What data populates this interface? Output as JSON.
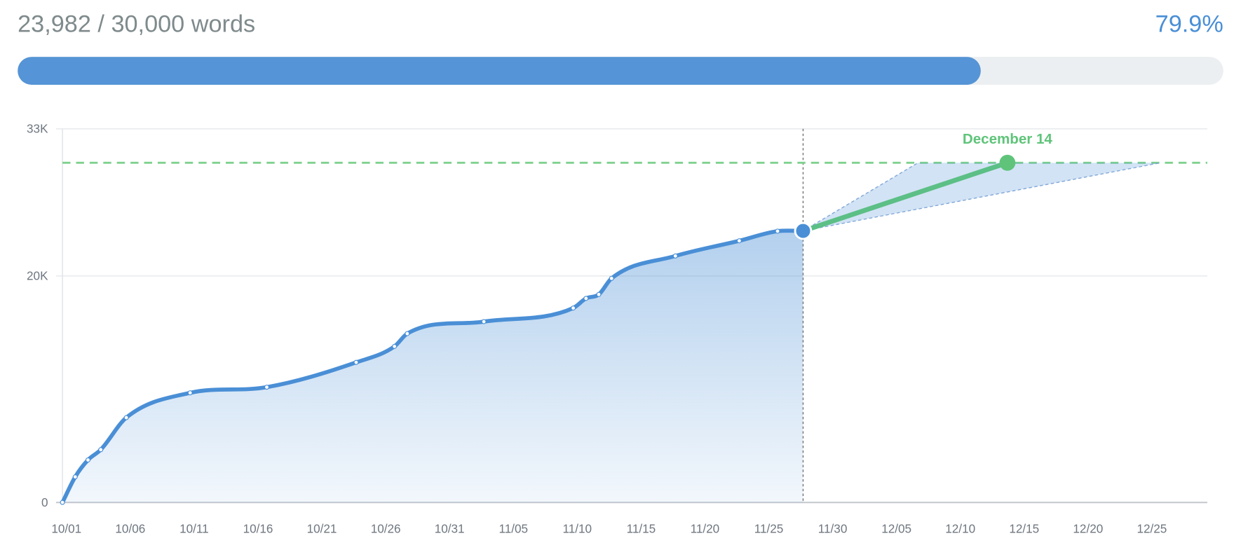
{
  "header": {
    "words_label": "23,982 / 30,000 words",
    "percent_label": "79.9%"
  },
  "progress": {
    "percent": 79.9,
    "fill_color": "#5594d6",
    "track_color": "#eceff1"
  },
  "chart_data": {
    "type": "area",
    "x_start": "10/01",
    "xlim_days": [
      "10/01",
      "12/31"
    ],
    "x_tick_labels": [
      "10/01",
      "10/06",
      "10/11",
      "10/16",
      "10/21",
      "10/26",
      "10/31",
      "11/05",
      "11/10",
      "11/15",
      "11/20",
      "11/25",
      "11/30",
      "12/05",
      "12/10",
      "12/15",
      "12/20",
      "12/25"
    ],
    "y_tick_labels": [
      "0",
      "20K",
      "33K"
    ],
    "y_ticks": [
      0,
      20000,
      33000
    ],
    "ylim": [
      0,
      33000
    ],
    "grid": true,
    "series": [
      {
        "color": "#4a8fd6",
        "points": [
          {
            "x": "10/01",
            "y": 0
          },
          {
            "x": "10/02",
            "y": 2260
          },
          {
            "x": "10/03",
            "y": 3750
          },
          {
            "x": "10/04",
            "y": 4660
          },
          {
            "x": "10/06",
            "y": 7490
          },
          {
            "x": "10/11",
            "y": 9680
          },
          {
            "x": "10/17",
            "y": 10180
          },
          {
            "x": "10/24",
            "y": 12370
          },
          {
            "x": "10/27",
            "y": 13780
          },
          {
            "x": "10/28",
            "y": 14910
          },
          {
            "x": "11/03",
            "y": 15970
          },
          {
            "x": "11/10",
            "y": 17170
          },
          {
            "x": "11/11",
            "y": 18020
          },
          {
            "x": "11/12",
            "y": 18370
          },
          {
            "x": "11/13",
            "y": 19790
          },
          {
            "x": "11/18",
            "y": 21770
          },
          {
            "x": "11/23",
            "y": 23110
          },
          {
            "x": "11/26",
            "y": 23960
          },
          {
            "x": "11/28",
            "y": 23982
          }
        ]
      }
    ],
    "goal": {
      "y": 30000,
      "color": "#7fd18f"
    },
    "today": {
      "x": "11/28",
      "y": 23982
    },
    "projection": {
      "x": "12/14",
      "y": 30000,
      "label": "December 14",
      "color": "#5cbf86",
      "range_start": "12/07",
      "range_end": "12/26"
    }
  }
}
